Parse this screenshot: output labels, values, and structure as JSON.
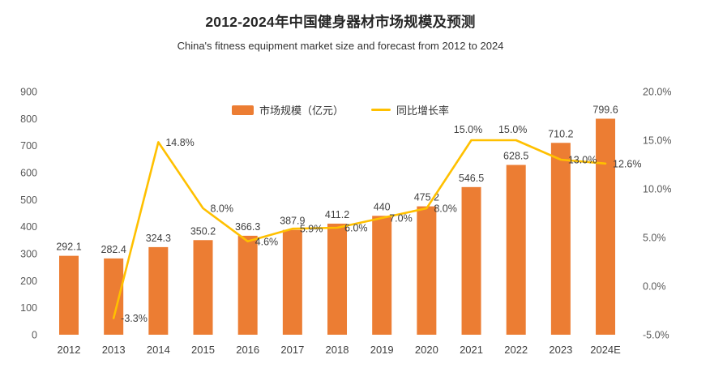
{
  "header": {
    "title": "2012-2024年中国健身器材市场规模及预测",
    "subtitle": "China's fitness equipment market size and forecast from 2012 to 2024"
  },
  "legend": [
    {
      "label": "市场规模（亿元）",
      "type": "bar",
      "color": "#EC7D33"
    },
    {
      "label": "同比增长率",
      "type": "line",
      "color": "#FFC000"
    }
  ],
  "colors": {
    "bar": "#EC7D33",
    "line": "#FFC000",
    "data_label": "#404040",
    "axis_label": "#595959",
    "category_label": "#404040"
  },
  "chart_data": {
    "type": "bar",
    "title": "2012-2024年中国健身器材市场规模及预测",
    "subtitle": "China's fitness equipment market size and forecast from 2012 to 2024",
    "categories": [
      "2012",
      "2013",
      "2014",
      "2015",
      "2016",
      "2017",
      "2018",
      "2019",
      "2020",
      "2021",
      "2022",
      "2023",
      "2024E"
    ],
    "series": [
      {
        "name": "市场规模（亿元）",
        "type": "bar",
        "axis": "left",
        "color": "#EC7D33",
        "values": [
          292.1,
          282.4,
          324.3,
          350.2,
          366.3,
          387.9,
          411.2,
          440,
          475.2,
          546.5,
          628.5,
          710.2,
          799.6
        ],
        "labels": [
          "292.1",
          "282.4",
          "324.3",
          "350.2",
          "366.3",
          "387.9",
          "411.2",
          "440",
          "475.2",
          "546.5",
          "628.5",
          "710.2",
          "799.6"
        ]
      },
      {
        "name": "同比增长率",
        "type": "line",
        "axis": "right",
        "color": "#FFC000",
        "values": [
          null,
          -3.3,
          14.8,
          8.0,
          4.6,
          5.9,
          6.0,
          7.0,
          8.0,
          15.0,
          15.0,
          13.0,
          12.6
        ],
        "labels": [
          null,
          "-3.3%",
          "14.8%",
          "8.0%",
          "4.6%",
          "5.9%",
          "6.0%",
          "7.0%",
          "8.0%",
          "15.0%",
          "15.0%",
          "13.0%",
          "12.6%"
        ],
        "label_pos": [
          null,
          "right",
          "right",
          "right",
          "right",
          "right",
          "right",
          "right",
          "right",
          "above",
          "above",
          "right",
          "right"
        ]
      }
    ],
    "left_axis": {
      "min": 0,
      "max": 900,
      "step": 100,
      "ticks": [
        "0",
        "100",
        "200",
        "300",
        "400",
        "500",
        "600",
        "700",
        "800",
        "900"
      ]
    },
    "right_axis": {
      "min": -5,
      "max": 20,
      "step": 5,
      "ticks": [
        "-5.0%",
        "0.0%",
        "5.0%",
        "10.0%",
        "15.0%",
        "20.0%"
      ]
    },
    "grid": false,
    "legend_position": "top-center"
  }
}
